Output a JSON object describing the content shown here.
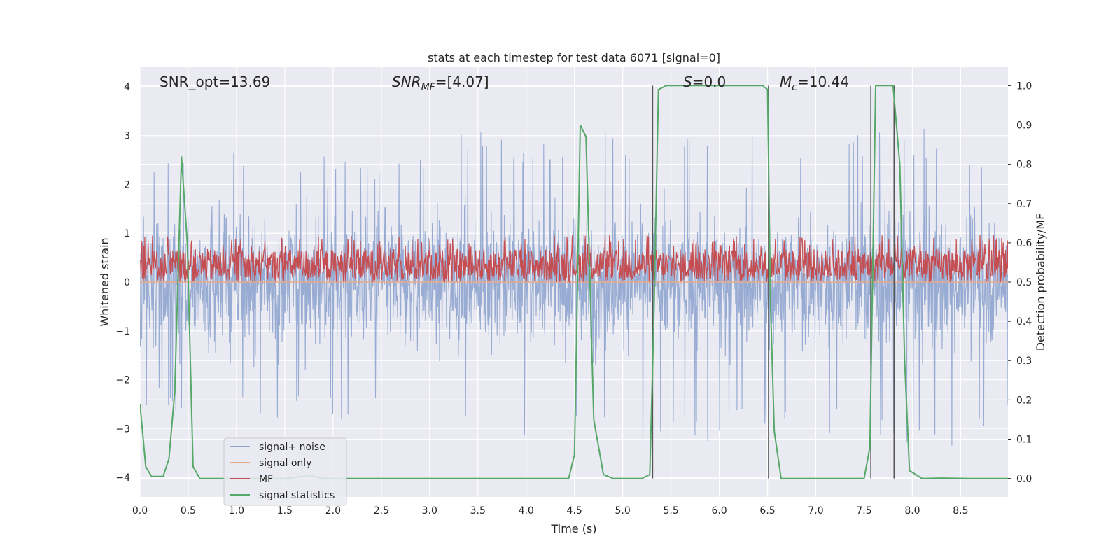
{
  "chart_data": {
    "type": "line",
    "title": "stats at each timestep for test data 6071 [signal=0]",
    "xlabel": "Time (s)",
    "ylabel_left": "Whitened strain",
    "ylabel_right": "Detection probability/MF",
    "xlim": [
      0.0,
      8.99
    ],
    "ylim_left": [
      -4.4,
      4.4
    ],
    "ylim_right": [
      -0.047,
      1.047
    ],
    "x_ticks": [
      "0.0",
      "0.5",
      "1.0",
      "1.5",
      "2.0",
      "2.5",
      "3.0",
      "3.5",
      "4.0",
      "4.5",
      "5.0",
      "5.5",
      "6.0",
      "6.5",
      "7.0",
      "7.5",
      "8.0",
      "8.5"
    ],
    "y_left_ticks": [
      "4",
      "3",
      "2",
      "1",
      "0",
      "−1",
      "−2",
      "−3",
      "−4"
    ],
    "y_right_ticks": [
      "1.0",
      "0.9",
      "0.8",
      "0.7",
      "0.6",
      "0.5",
      "0.4",
      "0.3",
      "0.2",
      "0.1",
      "0.0"
    ],
    "grid": true,
    "legend_position": "lower-left",
    "annotations": {
      "snr_opt": "SNR_opt=13.69",
      "snr_mf": "SNR",
      "snr_mf_sub": "MF",
      "snr_mf_value": "=[4.07]",
      "s_sym": "S",
      "s_value": "=0.0",
      "mc_sym": "M",
      "mc_sub": "c",
      "mc_value": "=10.44"
    },
    "series": [
      {
        "name": "signal+ noise",
        "color": "#8fa5cf",
        "axis": "left",
        "description_range": [
          -3.6,
          4.0
        ],
        "envelope_x": [
          0.0,
          0.5,
          1.0,
          1.5,
          2.0,
          2.5,
          3.0,
          3.5,
          4.0,
          4.5,
          5.0,
          5.5,
          6.0,
          6.5,
          7.0,
          7.5,
          8.0,
          8.5,
          8.99
        ],
        "envelope_upper": [
          2.6,
          3.0,
          2.7,
          2.8,
          2.7,
          2.6,
          2.8,
          3.2,
          2.7,
          3.1,
          3.2,
          2.9,
          3.1,
          3.0,
          3.0,
          3.1,
          3.2,
          3.1,
          2.6
        ],
        "envelope_lower": [
          -2.5,
          -2.9,
          -2.7,
          -2.9,
          -2.8,
          -2.9,
          -3.2,
          -3.3,
          -3.2,
          -2.8,
          -3.4,
          -3.2,
          -3.3,
          -3.0,
          -3.1,
          -3.4,
          -3.3,
          -3.4,
          -2.6
        ]
      },
      {
        "name": "signal only",
        "color": "#e8a98a",
        "axis": "left",
        "x": [
          0.0,
          8.99
        ],
        "y": [
          0.0,
          0.0
        ]
      },
      {
        "name": "MF",
        "color": "#c44e52",
        "axis": "right",
        "range": [
          0.5,
          0.62
        ]
      },
      {
        "name": "signal statistics",
        "color": "#55a868",
        "axis": "right",
        "x": [
          0.0,
          0.06,
          0.12,
          0.24,
          0.3,
          0.36,
          0.43,
          0.49,
          0.55,
          0.62,
          0.9,
          1.2,
          1.5,
          1.76,
          1.9,
          2.2,
          3.0,
          4.0,
          4.44,
          4.5,
          4.56,
          4.62,
          4.7,
          4.8,
          4.9,
          5.2,
          5.28,
          5.32,
          5.37,
          5.45,
          5.6,
          6.0,
          6.45,
          6.5,
          6.53,
          6.57,
          6.64,
          6.8,
          7.2,
          7.5,
          7.56,
          7.62,
          7.7,
          7.8,
          7.87,
          7.92,
          7.97,
          8.1,
          8.3,
          8.6,
          8.99
        ],
        "y": [
          0.19,
          0.03,
          0.005,
          0.005,
          0.05,
          0.22,
          0.82,
          0.6,
          0.03,
          0.0,
          0.0,
          0.0,
          0.0,
          0.007,
          0.0,
          0.0,
          0.0,
          0.0,
          0.0,
          0.06,
          0.9,
          0.87,
          0.15,
          0.01,
          0.0,
          0.0,
          0.01,
          0.38,
          0.99,
          1.0,
          1.0,
          1.0,
          1.0,
          0.99,
          0.45,
          0.12,
          0.0,
          0.0,
          0.0,
          0.0,
          0.08,
          1.0,
          1.0,
          1.0,
          0.8,
          0.3,
          0.02,
          0.0,
          0.001,
          0.0,
          0.0
        ]
      }
    ],
    "vertical_lines": [
      5.31,
      6.51,
      7.57,
      7.81
    ]
  }
}
